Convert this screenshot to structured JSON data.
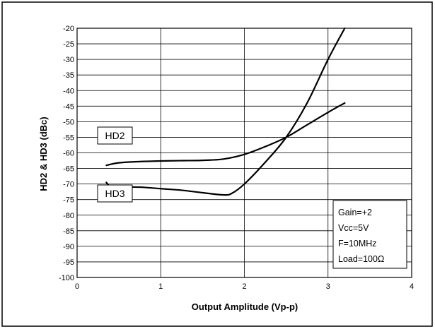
{
  "chart_data": {
    "type": "line",
    "title": "",
    "xlabel": "Output Amplitude  (Vp-p)",
    "ylabel": "HD2 & HD3  (dBc)",
    "xlim": [
      0,
      4
    ],
    "ylim": [
      -100,
      -20
    ],
    "x_ticks": [
      "0",
      "1",
      "2",
      "3",
      "4"
    ],
    "y_ticks": [
      "-20",
      "-25",
      "-30",
      "-35",
      "-40",
      "-45",
      "-50",
      "-55",
      "-60",
      "-65",
      "-70",
      "-75",
      "-80",
      "-85",
      "-90",
      "-95",
      "-100"
    ],
    "grid": true,
    "series": [
      {
        "name": "HD2",
        "x": [
          0.35,
          0.5,
          0.75,
          1.0,
          1.25,
          1.5,
          1.75,
          2.0,
          2.25,
          2.5,
          2.75,
          3.0,
          3.2
        ],
        "y": [
          -64,
          -63.2,
          -62.8,
          -62.6,
          -62.5,
          -62.4,
          -62.0,
          -60.5,
          -58.0,
          -55.0,
          -51.0,
          -47.0,
          -44.0
        ]
      },
      {
        "name": "HD3",
        "x": [
          0.35,
          0.4,
          0.5,
          0.75,
          1.0,
          1.25,
          1.5,
          1.75,
          1.85,
          2.0,
          2.25,
          2.5,
          2.75,
          3.0,
          3.2
        ],
        "y": [
          -69.5,
          -70.8,
          -71.0,
          -71.0,
          -71.5,
          -72.0,
          -72.8,
          -73.5,
          -73.0,
          -70.0,
          -63.0,
          -55.0,
          -44.0,
          -30.0,
          -20.0
        ]
      }
    ],
    "labels": {
      "hd2": "HD2",
      "hd3": "HD3"
    },
    "conditions": [
      "Gain=+2",
      "Vcc=5V",
      "F=10MHz",
      "Load=100Ω"
    ]
  }
}
